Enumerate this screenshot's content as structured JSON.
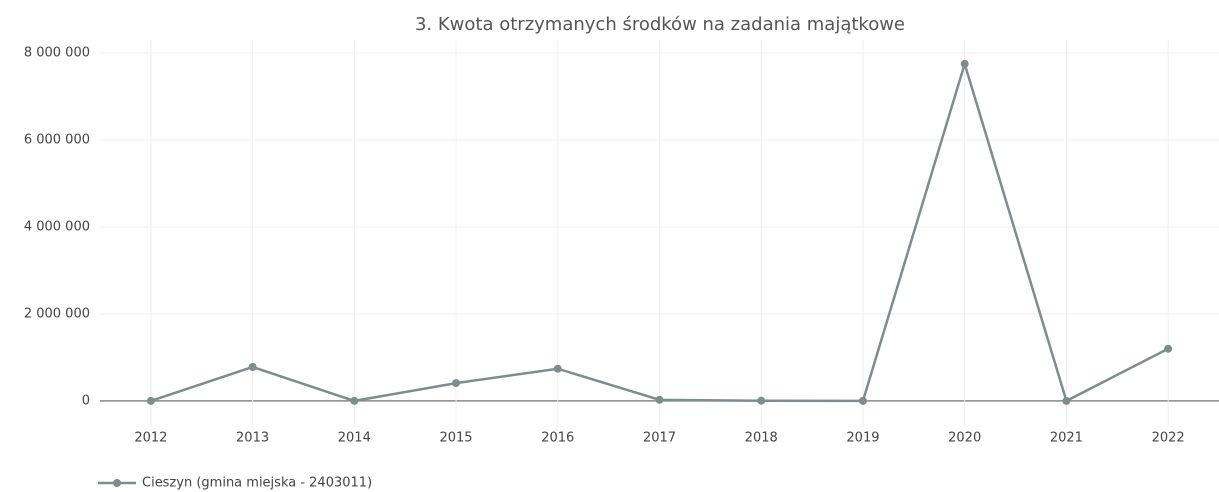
{
  "chart_data": {
    "type": "line",
    "title": "3. Kwota otrzymanych środków na zadania majątkowe",
    "x": [
      2012,
      2013,
      2014,
      2015,
      2016,
      2017,
      2018,
      2019,
      2020,
      2021,
      2022
    ],
    "series": [
      {
        "name": "Cieszyn (gmina miejska - 2403011)",
        "color": "#7f8c8d",
        "values": [
          0,
          780000,
          0,
          410000,
          740000,
          25000,
          5000,
          0,
          7750000,
          0,
          1200000
        ]
      }
    ],
    "xlim": [
      2011.5,
      2022.5
    ],
    "xticks": [
      2012,
      2013,
      2014,
      2015,
      2016,
      2017,
      2018,
      2019,
      2020,
      2021,
      2022
    ],
    "ylim": [
      -600000,
      8300000
    ],
    "yticks": [
      0,
      {
        "value": 2000000,
        "label": "2 000 000"
      },
      {
        "value": 4000000,
        "label": "4 000 000"
      },
      {
        "value": 6000000,
        "label": "6 000 000"
      },
      {
        "value": 8000000,
        "label": "8 000 000"
      }
    ],
    "grid": true,
    "legend": "bottom-left"
  }
}
